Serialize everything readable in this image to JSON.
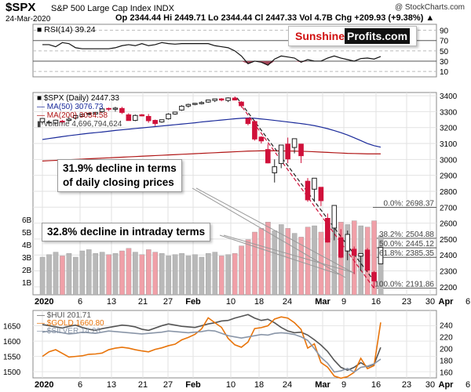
{
  "header": {
    "symbol": "$SPX",
    "name": "S&P 500 Large Cap Index  INDX",
    "copyright": "@ StockCharts.com",
    "date": "24-Mar-2020",
    "ohlc": "Op 2344.44  Hi 2449.71  Lo 2344.44  Cl 2447.33  Vol 4.7B  Chg +209.93 (+9.38%) ▲"
  },
  "brand": {
    "part1": "Sunshine",
    "part2": "Profits.com"
  },
  "annotations": {
    "closing": [
      "31.9% decline in terms",
      "of daily closing prices"
    ],
    "intraday": "32.8% decline in intraday terms"
  },
  "colors": {
    "up": "#222222",
    "down": "#d0103a",
    "ma50": "#1a2a9a",
    "ma200": "#b01515",
    "vol_up": "#b9b9b9",
    "vol_down": "#f0a0a8",
    "gold": "#e8740a",
    "hui": "#555555",
    "silver": "#8a96a8",
    "rsi": "#111111",
    "rsi_fill_up": "#3c6e2e",
    "rsi_fill_down": "#a2485a"
  },
  "chart_data": [
    {
      "type": "line",
      "panel": "rsi",
      "legend": "RSI(14) 39.24",
      "ylim": [
        0,
        100
      ],
      "yticks": [
        10,
        30,
        50,
        70,
        90
      ],
      "series": [
        {
          "name": "RSI(14)",
          "values": [
            62,
            62,
            58,
            66,
            64,
            56,
            54,
            54,
            54,
            54,
            54,
            56,
            60,
            62,
            60,
            64,
            60,
            62,
            66,
            64,
            63,
            64,
            64,
            64,
            64,
            64,
            60,
            58,
            56,
            50,
            40,
            25,
            30,
            28,
            22,
            34,
            40,
            38,
            36,
            28,
            33,
            30,
            30,
            36,
            40,
            36,
            33,
            30,
            35,
            36,
            34,
            39
          ]
        }
      ]
    },
    {
      "type": "candlestick",
      "panel": "price",
      "legend_title": "$SPX (Daily) 2447.33",
      "ylim": [
        2150,
        3420
      ],
      "yticks": [
        2200,
        2300,
        2400,
        2500,
        2600,
        2700,
        2800,
        2900,
        3000,
        3100,
        3200,
        3300,
        3400
      ],
      "x_labels": [
        "2020",
        "6",
        "13",
        "21",
        "27",
        "Feb",
        "10",
        "18",
        "24",
        "Mar",
        "9",
        "16",
        "23",
        "30",
        "Apr",
        "6"
      ],
      "candles": [
        {
          "o": 3235,
          "h": 3258,
          "l": 3220,
          "c": 3257
        },
        {
          "o": 3230,
          "h": 3245,
          "l": 3210,
          "c": 3234
        },
        {
          "o": 3228,
          "h": 3250,
          "l": 3220,
          "c": 3246
        },
        {
          "o": 3240,
          "h": 3248,
          "l": 3220,
          "c": 3237
        },
        {
          "o": 3245,
          "h": 3265,
          "l": 3235,
          "c": 3253
        },
        {
          "o": 3260,
          "h": 3280,
          "l": 3250,
          "c": 3275
        },
        {
          "o": 3270,
          "h": 3285,
          "l": 3265,
          "c": 3283
        },
        {
          "o": 3285,
          "h": 3295,
          "l": 3275,
          "c": 3289
        },
        {
          "o": 3285,
          "h": 3298,
          "l": 3280,
          "c": 3295
        },
        {
          "o": 3300,
          "h": 3318,
          "l": 3290,
          "c": 3317
        },
        {
          "o": 3320,
          "h": 3325,
          "l": 3305,
          "c": 3316
        },
        {
          "o": 3315,
          "h": 3330,
          "l": 3300,
          "c": 3322
        },
        {
          "o": 3320,
          "h": 3330,
          "l": 3285,
          "c": 3295
        },
        {
          "o": 3280,
          "h": 3290,
          "l": 3245,
          "c": 3244
        },
        {
          "o": 3245,
          "h": 3282,
          "l": 3240,
          "c": 3276
        },
        {
          "o": 3280,
          "h": 3285,
          "l": 3270,
          "c": 3273
        },
        {
          "o": 3270,
          "h": 3285,
          "l": 3230,
          "c": 3243
        },
        {
          "o": 3245,
          "h": 3250,
          "l": 3210,
          "c": 3225
        },
        {
          "o": 3235,
          "h": 3250,
          "l": 3230,
          "c": 3249
        },
        {
          "o": 3255,
          "h": 3290,
          "l": 3250,
          "c": 3284
        },
        {
          "o": 3285,
          "h": 3300,
          "l": 3280,
          "c": 3297
        },
        {
          "o": 3310,
          "h": 3340,
          "l": 3305,
          "c": 3334
        },
        {
          "o": 3335,
          "h": 3350,
          "l": 3325,
          "c": 3345
        },
        {
          "o": 3345,
          "h": 3355,
          "l": 3340,
          "c": 3352
        },
        {
          "o": 3350,
          "h": 3365,
          "l": 3345,
          "c": 3357
        },
        {
          "o": 3360,
          "h": 3375,
          "l": 3355,
          "c": 3373
        },
        {
          "o": 3370,
          "h": 3380,
          "l": 3360,
          "c": 3380
        },
        {
          "o": 3380,
          "h": 3385,
          "l": 3365,
          "c": 3373
        },
        {
          "o": 3370,
          "h": 3390,
          "l": 3360,
          "c": 3386
        },
        {
          "o": 3385,
          "h": 3393,
          "l": 3370,
          "c": 3373
        },
        {
          "o": 3360,
          "h": 3365,
          "l": 3325,
          "c": 3337
        },
        {
          "o": 3257,
          "h": 3260,
          "l": 3214,
          "c": 3225
        },
        {
          "o": 3238,
          "h": 3246,
          "l": 3118,
          "c": 3128
        },
        {
          "o": 3140,
          "h": 3145,
          "l": 3100,
          "c": 3116
        },
        {
          "o": 3062,
          "h": 3097,
          "l": 2975,
          "c": 2978
        },
        {
          "o": 2916,
          "h": 3000,
          "l": 2855,
          "c": 2954
        },
        {
          "o": 2974,
          "h": 3090,
          "l": 2945,
          "c": 3090
        },
        {
          "o": 3096,
          "h": 3137,
          "l": 2976,
          "c": 3003
        },
        {
          "o": 3075,
          "h": 3131,
          "l": 3038,
          "c": 3130
        },
        {
          "o": 3096,
          "h": 3098,
          "l": 2977,
          "c": 3023
        },
        {
          "o": 2863,
          "h": 2883,
          "l": 2734,
          "c": 2746
        },
        {
          "o": 2813,
          "h": 2883,
          "l": 2734,
          "c": 2882
        },
        {
          "o": 2825,
          "h": 2825,
          "l": 2707,
          "c": 2741
        },
        {
          "o": 2630,
          "h": 2660,
          "l": 2478,
          "c": 2481
        },
        {
          "o": 2569,
          "h": 2711,
          "l": 2492,
          "c": 2711
        },
        {
          "o": 2508,
          "h": 2562,
          "l": 2380,
          "c": 2386
        },
        {
          "o": 2425,
          "h": 2553,
          "l": 2367,
          "c": 2529
        },
        {
          "o": 2436,
          "h": 2453,
          "l": 2280,
          "c": 2398
        },
        {
          "o": 2393,
          "h": 2410,
          "l": 2299,
          "c": 2409
        },
        {
          "o": 2431,
          "h": 2443,
          "l": 2292,
          "c": 2305
        },
        {
          "o": 2290,
          "h": 2300,
          "l": 2191,
          "c": 2237
        },
        {
          "o": 2344,
          "h": 2450,
          "l": 2344,
          "c": 2447
        }
      ],
      "ma50": {
        "name": "MA(50)",
        "legend": "MA(50) 3076.73",
        "values": [
          3125,
          3131,
          3137,
          3143,
          3149,
          3154,
          3159,
          3164,
          3168,
          3172,
          3177,
          3182,
          3186,
          3190,
          3194,
          3198,
          3202,
          3206,
          3210,
          3214,
          3218,
          3222,
          3226,
          3230,
          3235,
          3239,
          3243,
          3247,
          3251,
          3255,
          3258,
          3260,
          3258,
          3254,
          3250,
          3245,
          3240,
          3235,
          3230,
          3225,
          3219,
          3212,
          3203,
          3193,
          3181,
          3168,
          3153,
          3136,
          3118,
          3100,
          3086,
          3077
        ]
      },
      "ma200": {
        "name": "MA(200)",
        "legend": "MA(200) 3034.58",
        "values": [
          2990,
          2992,
          2994,
          2996,
          2998,
          3000,
          3002,
          3004,
          3006,
          3008,
          3010,
          3012,
          3014,
          3016,
          3018,
          3020,
          3022,
          3024,
          3026,
          3028,
          3030,
          3032,
          3034,
          3036,
          3038,
          3040,
          3042,
          3044,
          3046,
          3048,
          3050,
          3052,
          3053,
          3054,
          3054,
          3054,
          3053,
          3053,
          3052,
          3051,
          3050,
          3048,
          3046,
          3044,
          3042,
          3040,
          3038,
          3037,
          3036,
          3035,
          3035,
          3035
        ]
      },
      "volume": {
        "name": "Volume",
        "legend": "Volume 4,696,794,624",
        "ylim": [
          0,
          7
        ],
        "yticks": [
          1,
          2,
          3,
          4,
          5,
          6
        ],
        "tick_suffix": "B",
        "values_b": [
          3.0,
          3.2,
          3.4,
          3.1,
          3.3,
          3.0,
          3.5,
          3.6,
          3.3,
          3.4,
          3.2,
          3.3,
          3.5,
          3.7,
          3.4,
          3.2,
          3.6,
          3.4,
          3.3,
          3.1,
          3.2,
          3.3,
          3.1,
          3.2,
          3.0,
          3.3,
          3.4,
          3.1,
          3.2,
          3.3,
          3.9,
          4.4,
          5.0,
          5.3,
          5.8,
          5.1,
          5.6,
          5.3,
          4.9,
          4.6,
          5.4,
          5.5,
          5.0,
          5.7,
          5.4,
          5.8,
          5.6,
          5.9,
          5.5,
          5.4,
          5.9,
          4.7
        ]
      },
      "fibonacci": [
        {
          "label": "0.0%: 2698.37",
          "value": 2698.37
        },
        {
          "label": "38.2%: 2504.88",
          "value": 2504.88
        },
        {
          "label": "50.0%: 2445.12",
          "value": 2445.12
        },
        {
          "label": "61.8%: 2385.35",
          "value": 2385.35
        },
        {
          "label": "100.0%: 2191.86",
          "value": 2191.86
        }
      ]
    },
    {
      "type": "line",
      "panel": "metals",
      "ylim": [
        1480,
        1700
      ],
      "yticks": [
        1500,
        1550,
        1600,
        1650
      ],
      "right_ylim": [
        150,
        265
      ],
      "right_yticks": [
        160,
        180,
        200,
        220,
        240
      ],
      "x_labels": [
        "2020",
        "6",
        "13",
        "21",
        "27",
        "Feb",
        "10",
        "18",
        "24",
        "Mar",
        "9",
        "16",
        "23",
        "30",
        "Apr",
        "6"
      ],
      "series": [
        {
          "name": "$HUI",
          "legend": "$HUI 201.71",
          "axis": "right",
          "values": [
            241,
            239,
            237,
            235,
            238,
            240,
            236,
            233,
            231,
            234,
            236,
            238,
            240,
            239,
            237,
            233,
            231,
            235,
            239,
            242,
            240,
            238,
            237,
            236,
            239,
            242,
            244,
            247,
            248,
            252,
            255,
            258,
            252,
            248,
            250,
            244,
            236,
            230,
            227,
            228,
            223,
            215,
            206,
            195,
            180,
            168,
            163,
            168,
            176,
            169,
            173,
            202
          ]
        },
        {
          "name": "$GOLD",
          "legend": "$GOLD 1660.80",
          "axis": "left",
          "values": [
            1550,
            1565,
            1572,
            1560,
            1548,
            1550,
            1552,
            1557,
            1558,
            1561,
            1572,
            1577,
            1580,
            1577,
            1572,
            1568,
            1565,
            1573,
            1578,
            1585,
            1590,
            1604,
            1612,
            1622,
            1640,
            1676,
            1660,
            1645,
            1609,
            1588,
            1580,
            1597,
            1641,
            1644,
            1650,
            1672,
            1679,
            1675,
            1660,
            1638,
            1577,
            1591,
            1530,
            1515,
            1486,
            1479,
            1484,
            1498,
            1544,
            1510,
            1520,
            1661
          ]
        },
        {
          "name": "$SILVER",
          "legend": "$SILVER 14.26",
          "axis": "right",
          "values": [
            228,
            230,
            229,
            227,
            225,
            226,
            228,
            227,
            226,
            228,
            230,
            229,
            228,
            227,
            226,
            225,
            226,
            227,
            228,
            230,
            229,
            228,
            227,
            228,
            229,
            231,
            230,
            226,
            222,
            220,
            218,
            220,
            222,
            224,
            223,
            226,
            227,
            226,
            224,
            220,
            214,
            200,
            185,
            175,
            160,
            162,
            166,
            160,
            168,
            170,
            174,
            182
          ]
        }
      ]
    }
  ]
}
